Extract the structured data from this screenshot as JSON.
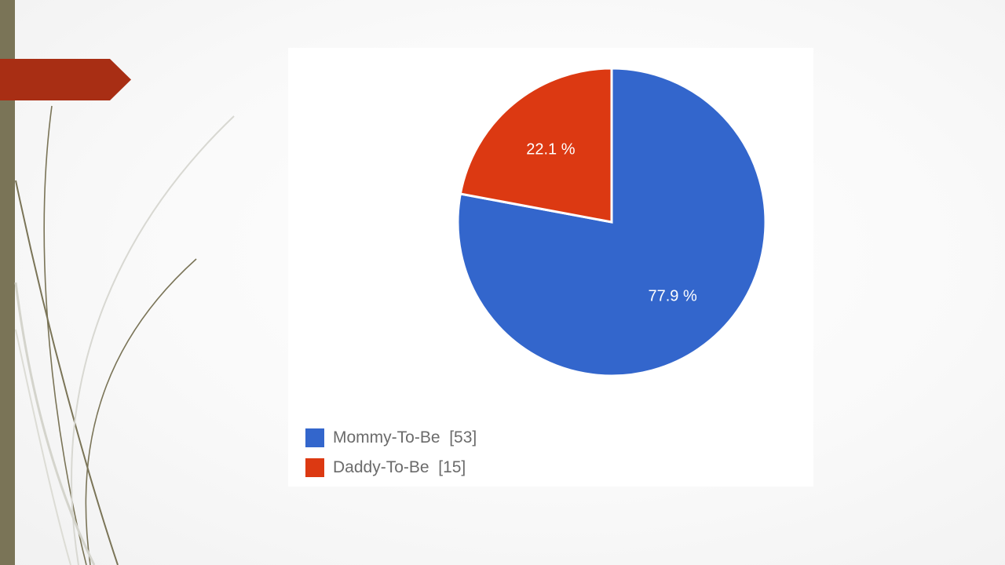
{
  "chart_data": {
    "type": "pie",
    "slices": [
      {
        "name": "Mommy-To-Be",
        "count": "[53]",
        "value": 53,
        "percent_label": "77.9 %",
        "color": "#3366cc"
      },
      {
        "name": "Daddy-To-Be",
        "count": "[15]",
        "value": 15,
        "percent_label": "22.1 %",
        "color": "#dc3912"
      }
    ],
    "start_angle_deg": 0,
    "legend_position": "bottom-left"
  },
  "theme": {
    "bar_color": "#7a7457",
    "tab_color": "#a82e14"
  }
}
